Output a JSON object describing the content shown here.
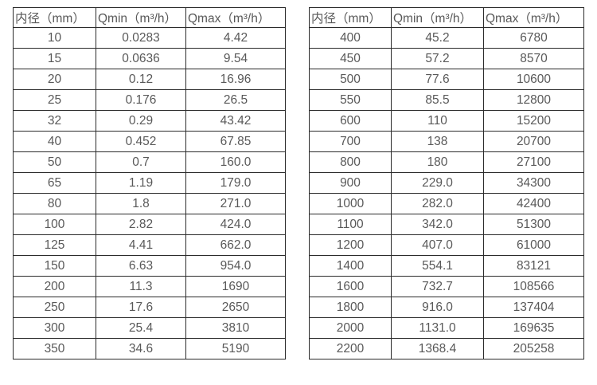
{
  "colors": {
    "background": "#ffffff",
    "border": "#2b2b2b",
    "text": "#595959"
  },
  "tables": [
    {
      "name": "flow-range-table-small-diameters",
      "headers": [
        "内径（mm）",
        "Qmin（m³/h）",
        "Qmax（m³/h）"
      ],
      "rows": [
        [
          "10",
          "0.0283",
          "4.42"
        ],
        [
          "15",
          "0.0636",
          "9.54"
        ],
        [
          "20",
          "0.12",
          "16.96"
        ],
        [
          "25",
          "0.176",
          "26.5"
        ],
        [
          "32",
          "0.29",
          "43.42"
        ],
        [
          "40",
          "0.452",
          "67.85"
        ],
        [
          "50",
          "0.7",
          "160.0"
        ],
        [
          "65",
          "1.19",
          "179.0"
        ],
        [
          "80",
          "1.8",
          "271.0"
        ],
        [
          "100",
          "2.82",
          "424.0"
        ],
        [
          "125",
          "4.41",
          "662.0"
        ],
        [
          "150",
          "6.63",
          "954.0"
        ],
        [
          "200",
          "11.3",
          "1690"
        ],
        [
          "250",
          "17.6",
          "2650"
        ],
        [
          "300",
          "25.4",
          "3810"
        ],
        [
          "350",
          "34.6",
          "5190"
        ]
      ]
    },
    {
      "name": "flow-range-table-large-diameters",
      "headers": [
        "内径（mm）",
        "Qmin（m³/h）",
        "Qmax（m³/h）"
      ],
      "rows": [
        [
          "400",
          "45.2",
          "6780"
        ],
        [
          "450",
          "57.2",
          "8570"
        ],
        [
          "500",
          "77.6",
          "10600"
        ],
        [
          "550",
          "85.5",
          "12800"
        ],
        [
          "600",
          "110",
          "15200"
        ],
        [
          "700",
          "138",
          "20700"
        ],
        [
          "800",
          "180",
          "27100"
        ],
        [
          "900",
          "229.0",
          "34300"
        ],
        [
          "1000",
          "282.0",
          "42400"
        ],
        [
          "1100",
          "342.0",
          "51300"
        ],
        [
          "1200",
          "407.0",
          "61000"
        ],
        [
          "1400",
          "554.1",
          "83121"
        ],
        [
          "1600",
          "732.7",
          "108566"
        ],
        [
          "1800",
          "916.0",
          "137404"
        ],
        [
          "2000",
          "1131.0",
          "169635"
        ],
        [
          "2200",
          "1368.4",
          "205258"
        ]
      ]
    }
  ]
}
